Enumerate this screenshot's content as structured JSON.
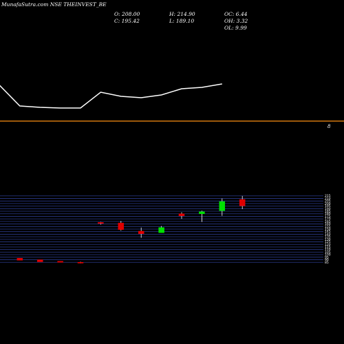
{
  "header": {
    "title": "MunafaSutra.com NSE THEINVEST_BE",
    "open": "O: 208.00",
    "close": "C: 195.42",
    "high": "H: 214.90",
    "low": "L: 189.10",
    "oc": "OC: 6.44",
    "oh": "OH: 3.32",
    "ol": "OL: 9.99"
  },
  "separator_label": "8",
  "colors": {
    "background": "#000000",
    "line": "#ffffff",
    "separator": "#d2780f",
    "grid": "#2a3a8a",
    "up": "#00e000",
    "down": "#e00000"
  },
  "chart_data": [
    {
      "type": "line",
      "description_series": "upper line",
      "x": [
        1,
        2,
        3,
        4,
        5,
        6,
        7,
        8,
        9,
        10,
        11,
        12
      ],
      "y": [
        124,
        154,
        156,
        157,
        157,
        134,
        140,
        142,
        138,
        129,
        127,
        122
      ]
    },
    {
      "type": "candlestick",
      "yaxis_ticks": [
        "215",
        "210",
        "205",
        "200",
        "195",
        "190",
        "185",
        "180",
        "175",
        "170",
        "165",
        "160",
        "155",
        "150",
        "145",
        "140",
        "135",
        "130",
        "125",
        "120",
        "115",
        "110",
        "105",
        "100",
        "95",
        "90",
        "85"
      ],
      "ylim": [
        84,
        216
      ],
      "candles": [
        {
          "x": 1,
          "open": 93,
          "high": 93,
          "low": 89,
          "close": 89
        },
        {
          "x": 2,
          "open": 90,
          "high": 90,
          "low": 86,
          "close": 86
        },
        {
          "x": 3,
          "open": 87,
          "high": 87,
          "low": 85,
          "close": 85
        },
        {
          "x": 4,
          "open": 85,
          "high": 86,
          "low": 83,
          "close": 84
        },
        {
          "x": 5,
          "open": 163,
          "high": 164,
          "low": 159,
          "close": 161
        },
        {
          "x": 6,
          "open": 162,
          "high": 166,
          "low": 147,
          "close": 149
        },
        {
          "x": 7,
          "open": 146,
          "high": 153,
          "low": 133,
          "close": 141
        },
        {
          "x": 8,
          "open": 143,
          "high": 156,
          "low": 143,
          "close": 153
        },
        {
          "x": 9,
          "open": 180,
          "high": 183,
          "low": 170,
          "close": 176
        },
        {
          "x": 10,
          "open": 180,
          "high": 186,
          "low": 164,
          "close": 184
        },
        {
          "x": 11,
          "open": 186,
          "high": 210,
          "low": 176,
          "close": 204
        },
        {
          "x": 12,
          "open": 208,
          "high": 214.9,
          "low": 189.1,
          "close": 195.42
        }
      ]
    }
  ]
}
